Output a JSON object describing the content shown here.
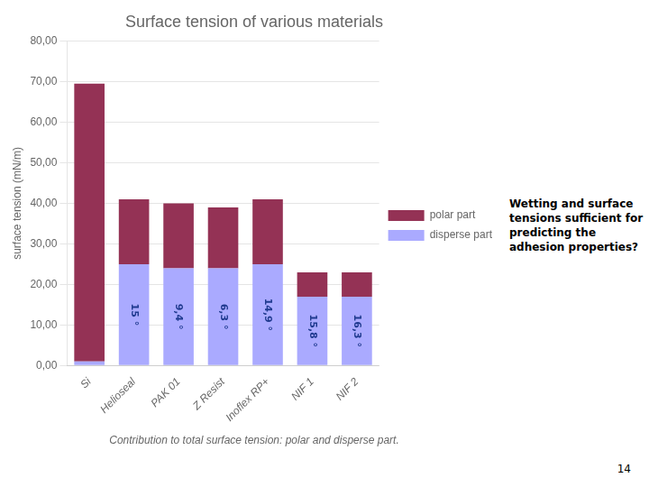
{
  "chart_data": {
    "type": "bar",
    "title": "Surface tension of various materials",
    "subtitle": "Contribution to total surface tension: polar and disperse part.",
    "categories": [
      "Si",
      "Helioseal",
      "PAK 01",
      "Z Resist",
      "Inoflex RP+",
      "NIF 1",
      "NIF 2"
    ],
    "series": [
      {
        "name": "disperse part",
        "color": "#AAAAFF",
        "values": [
          1.0,
          25.0,
          24.0,
          24.0,
          25.0,
          17.0,
          17.0
        ],
        "annotations": [
          null,
          "15 °",
          "9,4 °",
          "6,3 °",
          "14,9 °",
          "15,8 °",
          "16,3 °"
        ]
      },
      {
        "name": "polar part",
        "color": "#943255",
        "values": [
          68.5,
          16.0,
          16.0,
          15.0,
          16.0,
          6.0,
          6.0
        ]
      }
    ],
    "stacked": true,
    "ylabel": "surface tension (mN/m)",
    "ylim": [
      0,
      80
    ],
    "yticks": [
      {
        "value": 0,
        "label": "0,00"
      },
      {
        "value": 10,
        "label": "10,00"
      },
      {
        "value": 20,
        "label": "20,00"
      },
      {
        "value": 30,
        "label": "30,00"
      },
      {
        "value": 40,
        "label": "40,00"
      },
      {
        "value": 50,
        "label": "50,00"
      },
      {
        "value": 60,
        "label": "60,00"
      },
      {
        "value": 70,
        "label": "70,00"
      },
      {
        "value": 80,
        "label": "80,00"
      }
    ],
    "grid": true,
    "legend": "right",
    "annotations": [
      "Wetting and surface\ntensions sufficient for\npredicting the\nadhesion properties?",
      "14"
    ]
  }
}
